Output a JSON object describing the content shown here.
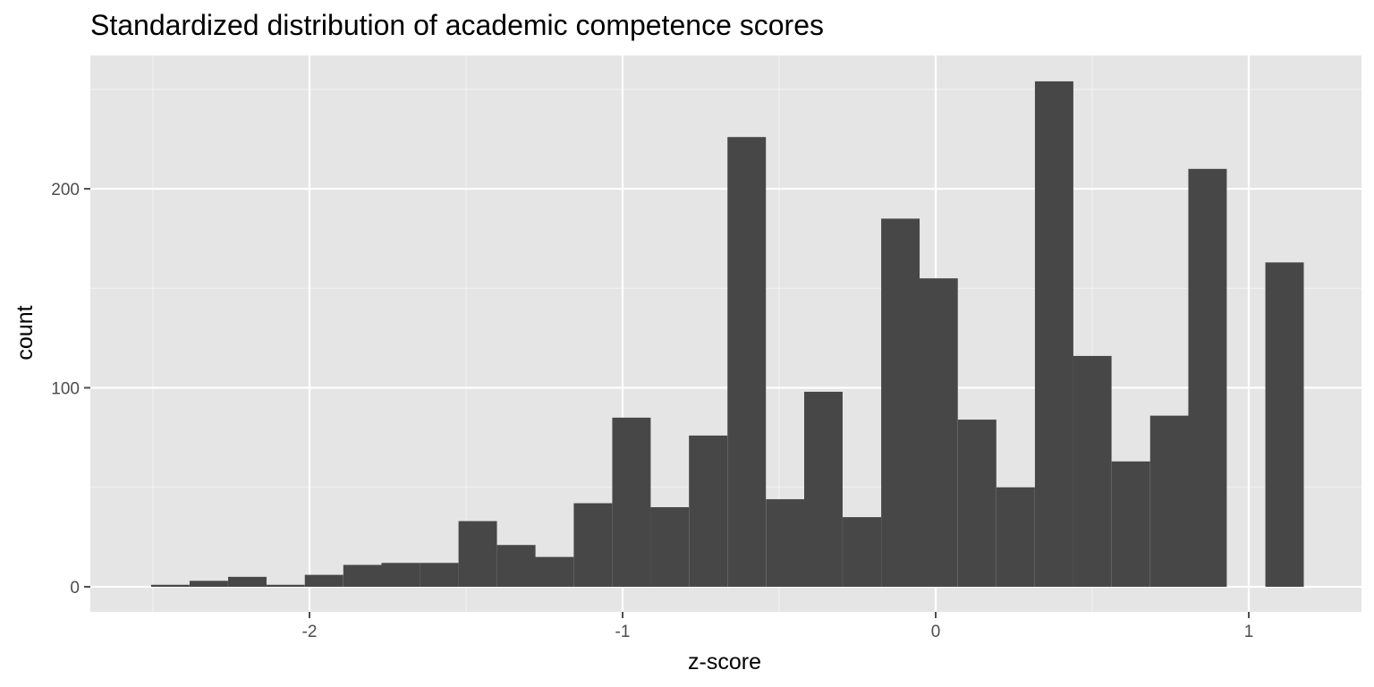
{
  "chart_data": {
    "type": "bar",
    "title": "Standardized distribution of academic competence scores",
    "xlabel": "z-score",
    "ylabel": "count",
    "bin_width": 0.1227,
    "bins_start": [
      -2.506,
      -2.383,
      -2.26,
      -2.138,
      -2.015,
      -1.892,
      -1.77,
      -1.647,
      -1.524,
      -1.401,
      -1.279,
      -1.156,
      -1.033,
      -0.911,
      -0.788,
      -0.665,
      -0.542,
      -0.42,
      -0.297,
      -0.174,
      -0.052,
      0.071,
      0.194,
      0.317,
      0.439,
      0.562,
      0.685,
      0.807,
      0.93,
      1.053
    ],
    "counts": [
      1,
      3,
      5,
      1,
      6,
      11,
      12,
      12,
      33,
      21,
      15,
      42,
      85,
      40,
      76,
      226,
      44,
      98,
      35,
      185,
      155,
      84,
      50,
      254,
      116,
      63,
      86,
      210,
      0,
      163
    ],
    "xlim": [
      -2.7,
      1.36
    ],
    "ylim": [
      -12.6,
      267
    ],
    "x_ticks": [
      -2,
      -1,
      0,
      1
    ],
    "y_ticks": [
      0,
      100,
      200
    ],
    "x_tick_labels": [
      "-2",
      "-1",
      "0",
      "1"
    ],
    "y_tick_labels": [
      "0",
      "100",
      "200"
    ],
    "grid": true,
    "colors": {
      "panel_background": "#e5e5e5",
      "grid_major": "#ffffff",
      "grid_minor": "#f2f2f2",
      "bar_fill": "#474747",
      "tick_color": "#4d4d4d"
    }
  }
}
